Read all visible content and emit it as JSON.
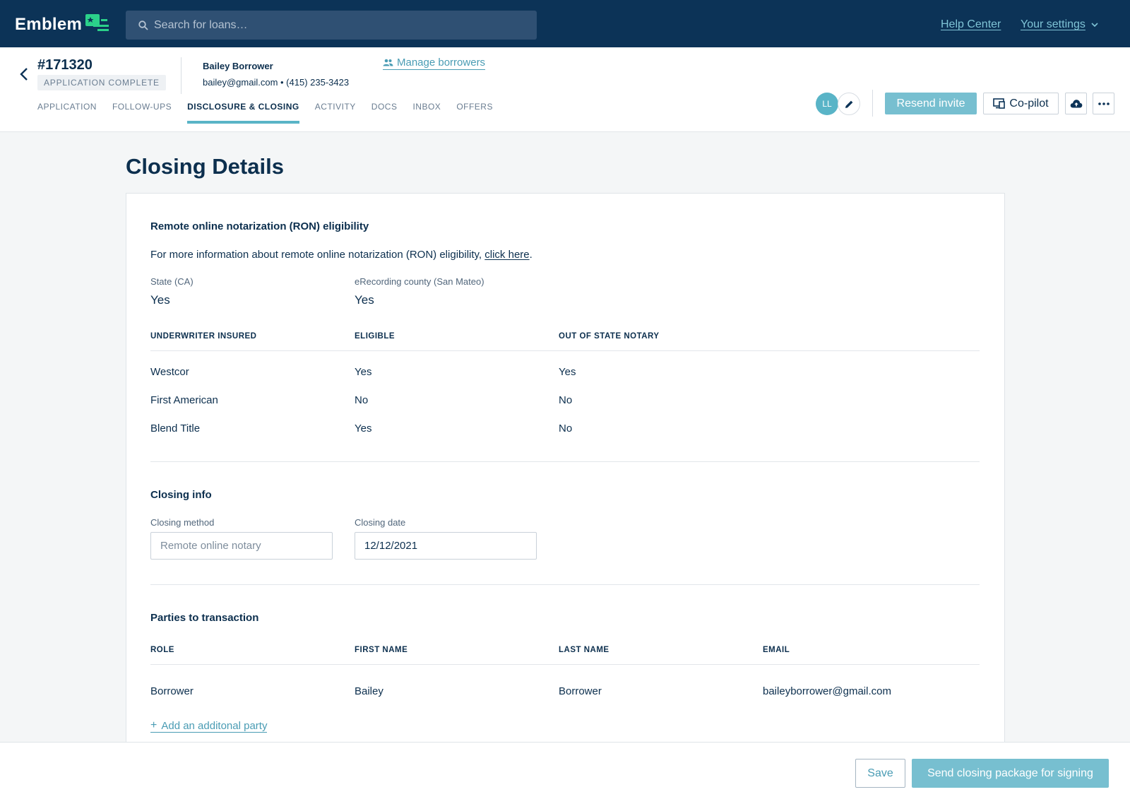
{
  "brand": {
    "name": "Emblem",
    "accent": "#2bd18a",
    "navy": "#0c3357",
    "teal": "#59b4c7"
  },
  "topbar": {
    "search_placeholder": "Search for loans…",
    "help_center": "Help Center",
    "your_settings": "Your settings"
  },
  "loan": {
    "number": "#171320",
    "status": "APPLICATION COMPLETE",
    "borrower_name": "Bailey Borrower",
    "borrower_contact": "bailey@gmail.com • (415) 235-3423",
    "manage_borrowers": "Manage borrowers",
    "avatar_initials": "LL"
  },
  "tabs": [
    {
      "label": "APPLICATION",
      "active": false
    },
    {
      "label": "FOLLOW-UPS",
      "active": false
    },
    {
      "label": "DISCLOSURE & CLOSING",
      "active": true
    },
    {
      "label": "ACTIVITY",
      "active": false
    },
    {
      "label": "DOCS",
      "active": false
    },
    {
      "label": "INBOX",
      "active": false
    },
    {
      "label": "OFFERS",
      "active": false
    }
  ],
  "actions": {
    "resend_invite": "Resend invite",
    "copilot": "Co-pilot"
  },
  "page": {
    "title": "Closing Details"
  },
  "ron": {
    "heading": "Remote online notarization (RON) eligibility",
    "info_prefix": "For more information about remote online notarization (RON) eligibility, ",
    "info_link": "click here",
    "info_suffix": ".",
    "state_label": "State (CA)",
    "state_value": "Yes",
    "county_label": "eRecording county (San Mateo)",
    "county_value": "Yes",
    "columns": [
      "UNDERWRITER INSURED",
      "ELIGIBLE",
      "OUT OF STATE NOTARY"
    ],
    "rows": [
      [
        "Westcor",
        "Yes",
        "Yes"
      ],
      [
        "First American",
        "No",
        "No"
      ],
      [
        "Blend Title",
        "Yes",
        "No"
      ]
    ]
  },
  "closing_info": {
    "heading": "Closing info",
    "method_label": "Closing method",
    "method_placeholder": "Remote online notary",
    "date_label": "Closing date",
    "date_value": "12/12/2021"
  },
  "parties": {
    "heading": "Parties to transaction",
    "columns": [
      "ROLE",
      "FIRST NAME",
      "LAST NAME",
      "EMAIL"
    ],
    "rows": [
      [
        "Borrower",
        "Bailey",
        "Borrower",
        "baileyborrower@gmail.com"
      ]
    ],
    "add_party": "Add an additonal party"
  },
  "footer": {
    "save": "Save",
    "send": "Send closing package for signing"
  }
}
